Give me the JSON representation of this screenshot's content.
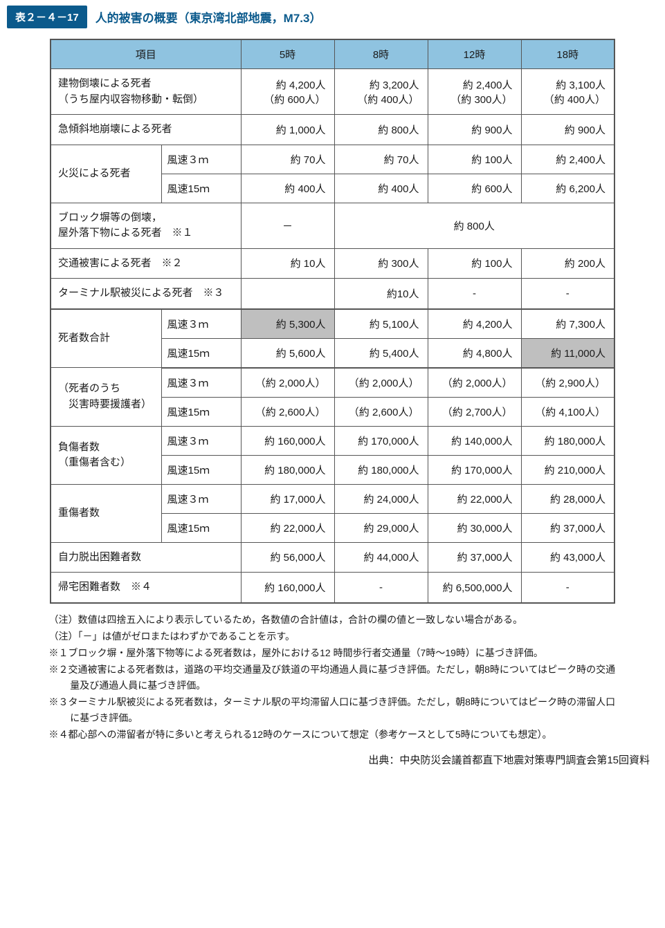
{
  "header": {
    "tag": "表２－４－17",
    "title": "人的被害の概要（東京湾北部地震，M7.3）"
  },
  "columns": [
    "項目",
    "5時",
    "8時",
    "12時",
    "18時"
  ],
  "rows": {
    "r1": {
      "label": "建物倒壊による死者\n（うち屋内収容物移動・転倒）",
      "v": [
        "約 4,200人\n（約 600人）",
        "約 3,200人\n（約 400人）",
        "約 2,400人\n（約 300人）",
        "約 3,100人\n（約 400人）"
      ]
    },
    "r2": {
      "label": "急傾斜地崩壊による死者",
      "v": [
        "約 1,000人",
        "約 800人",
        "約 900人",
        "約 900人"
      ]
    },
    "r3": {
      "label": "火災による死者",
      "sub": [
        "風速３ｍ",
        "風速15ｍ"
      ],
      "v": [
        [
          "約 70人",
          "約 70人",
          "約 100人",
          "約 2,400人"
        ],
        [
          "約 400人",
          "約 400人",
          "約 600人",
          "約 6,200人"
        ]
      ]
    },
    "r4": {
      "label": "ブロック塀等の倒壊，\n屋外落下物による死者　※１",
      "dash": "－",
      "merged": "約 800人"
    },
    "r5": {
      "label": "交通被害による死者　※２",
      "v": [
        "約 10人",
        "約 300人",
        "約 100人",
        "約 200人"
      ]
    },
    "r6": {
      "label": "ターミナル駅被災による死者　※３",
      "v": [
        "",
        "約10人",
        "-",
        "-"
      ]
    },
    "r7": {
      "label": "死者数合計",
      "sub": [
        "風速３ｍ",
        "風速15ｍ"
      ],
      "v": [
        [
          "約 5,300人",
          "約 5,100人",
          "約 4,200人",
          "約 7,300人"
        ],
        [
          "約 5,600人",
          "約 5,400人",
          "約 4,800人",
          "約 11,000人"
        ]
      ],
      "hl": [
        [
          0
        ],
        [
          3
        ]
      ]
    },
    "r8": {
      "label": "（死者のうち\n　災害時要援護者）",
      "sub": [
        "風速３ｍ",
        "風速15ｍ"
      ],
      "v": [
        [
          "（約 2,000人）",
          "（約 2,000人）",
          "（約 2,000人）",
          "（約 2,900人）"
        ],
        [
          "（約 2,600人）",
          "（約 2,600人）",
          "（約 2,700人）",
          "（約 4,100人）"
        ]
      ]
    },
    "r9": {
      "label": "負傷者数\n（重傷者含む）",
      "sub": [
        "風速３ｍ",
        "風速15ｍ"
      ],
      "v": [
        [
          "約 160,000人",
          "約 170,000人",
          "約 140,000人",
          "約 180,000人"
        ],
        [
          "約 180,000人",
          "約 180,000人",
          "約 170,000人",
          "約 210,000人"
        ]
      ]
    },
    "r10": {
      "label": "重傷者数",
      "sub": [
        "風速３ｍ",
        "風速15ｍ"
      ],
      "v": [
        [
          "約 17,000人",
          "約 24,000人",
          "約 22,000人",
          "約 28,000人"
        ],
        [
          "約 22,000人",
          "約 29,000人",
          "約 30,000人",
          "約 37,000人"
        ]
      ]
    },
    "r11": {
      "label": "自力脱出困難者数",
      "v": [
        "約 56,000人",
        "約 44,000人",
        "約 37,000人",
        "約 43,000人"
      ]
    },
    "r12": {
      "label": "帰宅困難者数　※４",
      "v": [
        "約 160,000人",
        "-",
        "約 6,500,000人",
        "-"
      ]
    }
  },
  "notes": [
    "（注）数値は四捨五入により表示しているため，各数値の合計値は，合計の欄の値と一致しない場合がある。",
    "（注）「－」は値がゼロまたはわずかであることを示す。",
    "※１ブロック塀・屋外落下物等による死者数は，屋外における12 時間歩行者交通量（7時～19時）に基づき評価。",
    "※２交通被害による死者数は，道路の平均交通量及び鉄道の平均通過人員に基づき評価。ただし，朝8時についてはピーク時の交通量及び通過人員に基づき評価。",
    "※３ターミナル駅被災による死者数は，ターミナル駅の平均滞留人口に基づき評価。ただし，朝8時についてはピーク時の滞留人口に基づき評価。",
    "※４都心部への滞留者が特に多いと考えられる12時のケースについて想定（参考ケースとして5時についても想定）。"
  ],
  "source": "出典：中央防災会議首都直下地震対策専門調査会第15回資料"
}
